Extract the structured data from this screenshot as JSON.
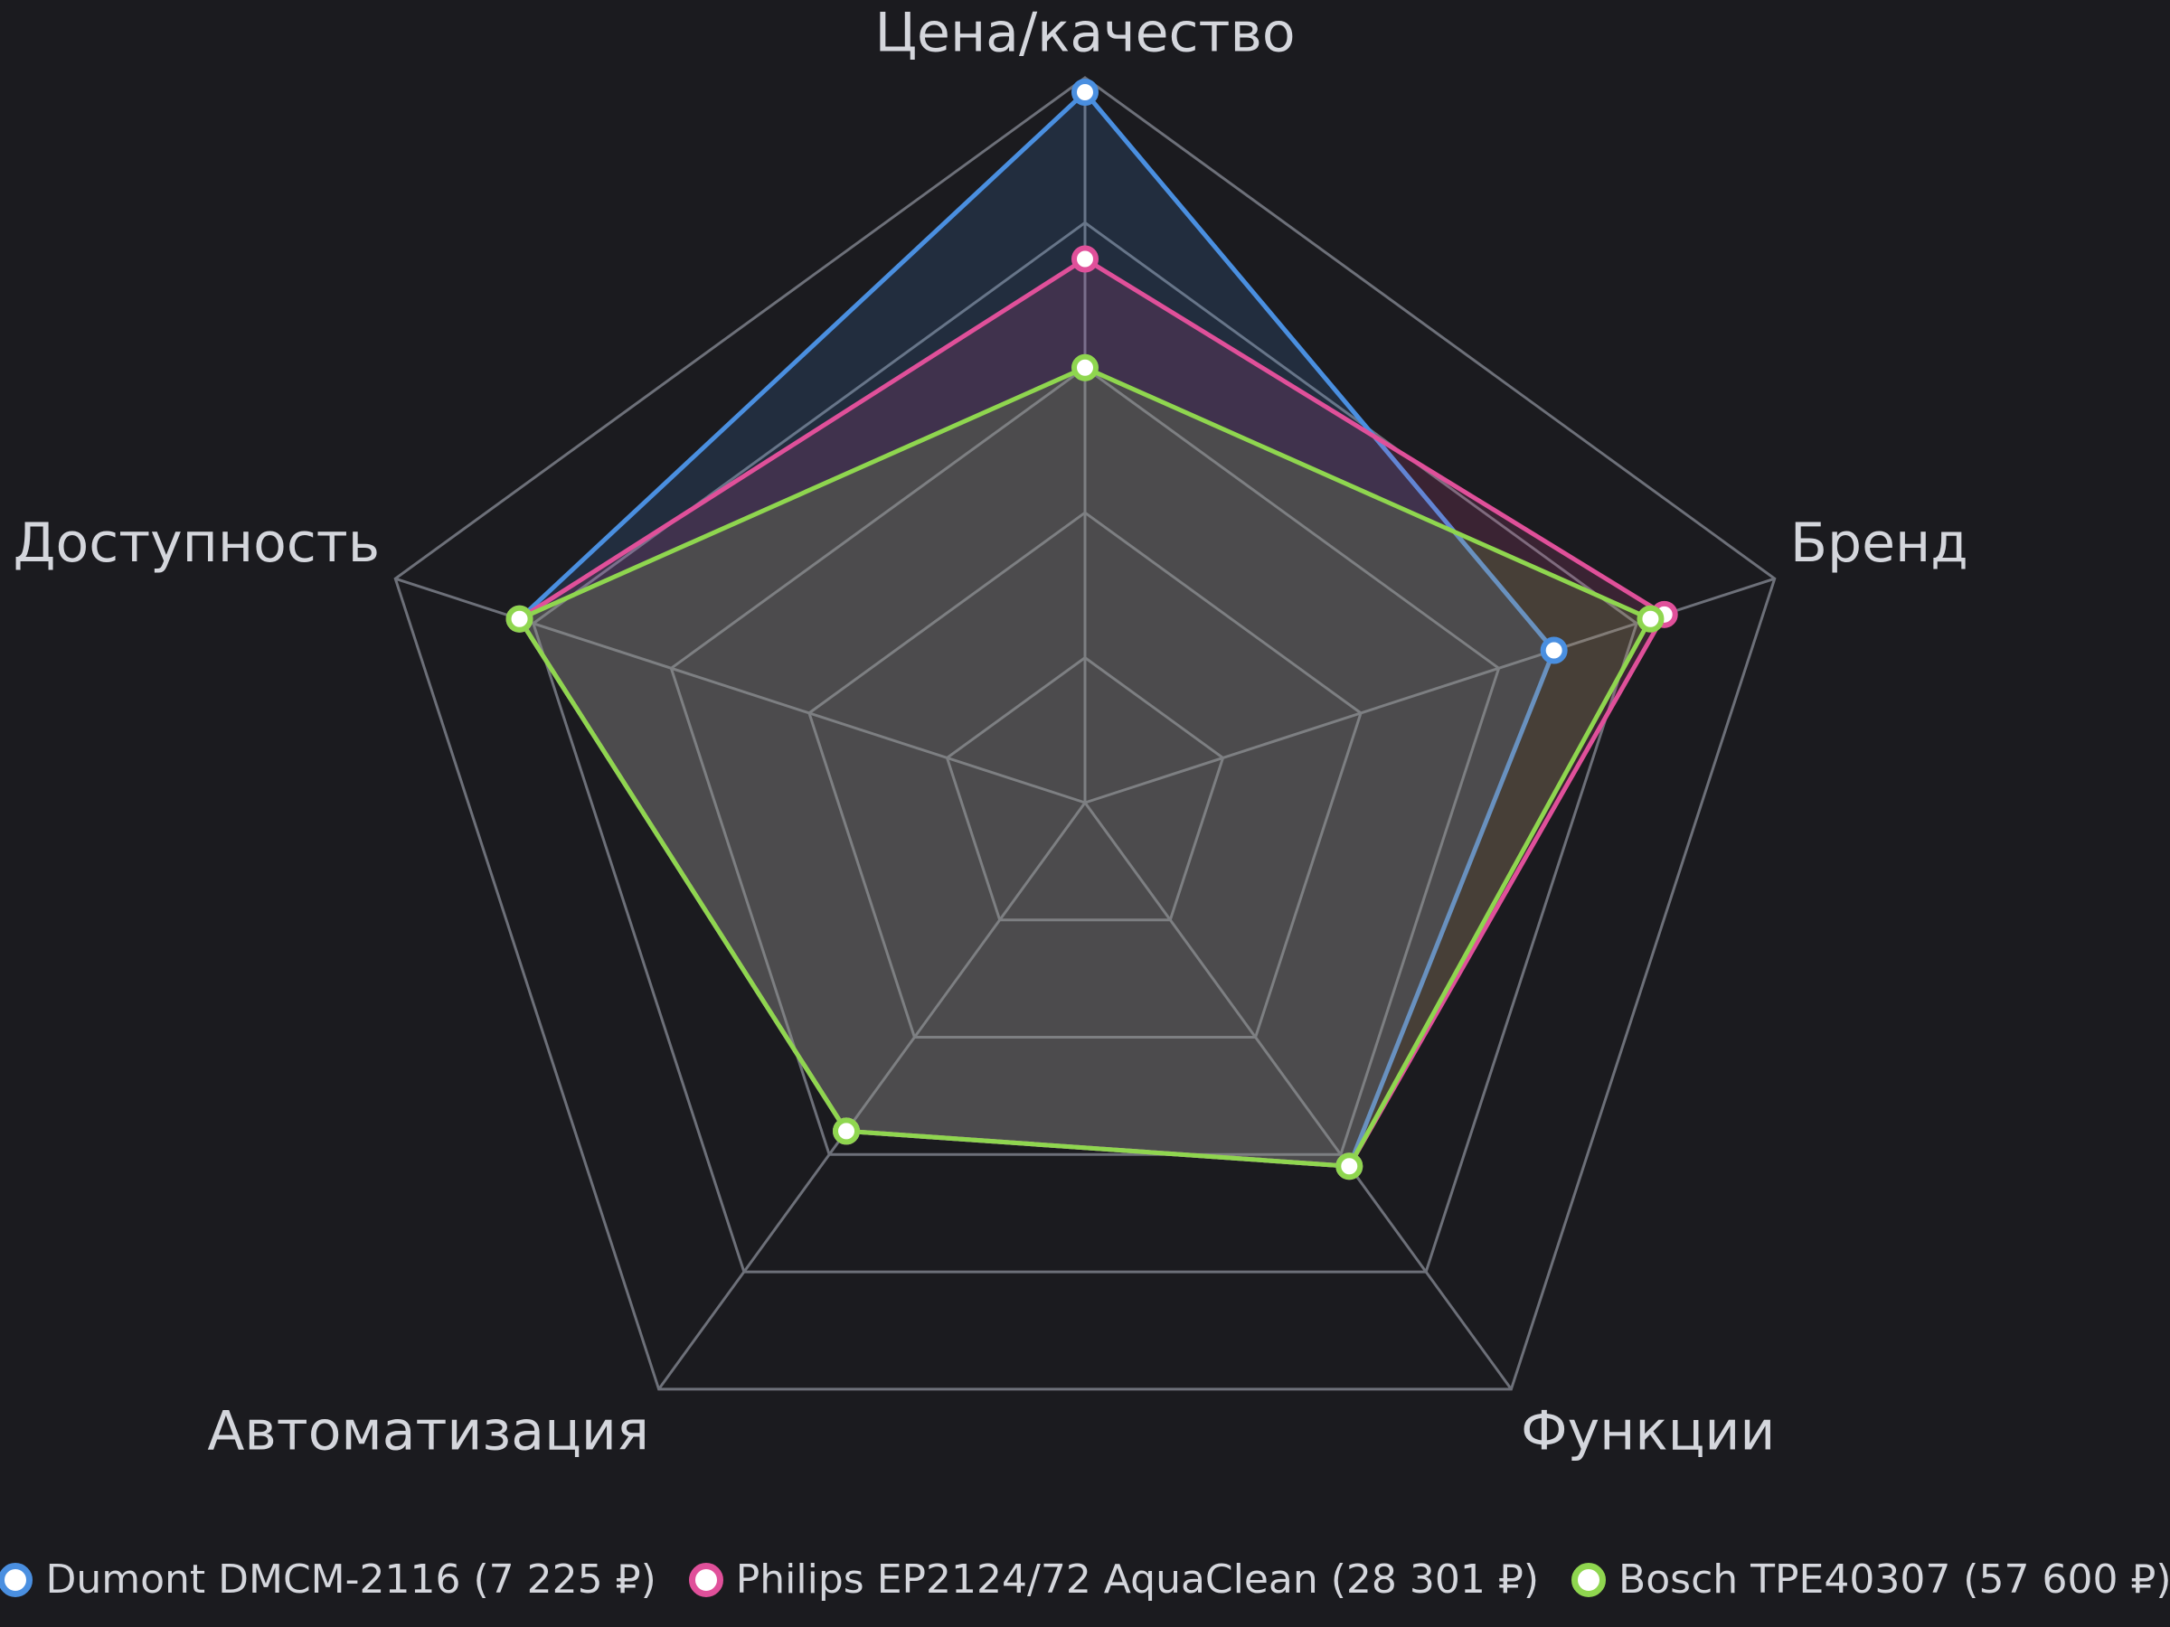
{
  "chart_data": {
    "type": "radar",
    "categories": [
      "Цена/качество",
      "Бренд",
      "Функции",
      "Автоматизация",
      "Доступность"
    ],
    "series": [
      {
        "name": "Dumont DMCM-2116 (7 225 ₽)",
        "color": "#4a8fe0",
        "values": [
          4.9,
          3.4,
          3.1,
          2.8,
          4.1
        ]
      },
      {
        "name": "Philips EP2124/72 AquaClean (28 301 ₽)",
        "color": "#e0509a",
        "values": [
          3.75,
          4.2,
          3.1,
          2.8,
          4.1
        ]
      },
      {
        "name": "Bosch TPE40307 (57 600 ₽)",
        "color": "#8fd64f",
        "values": [
          3.0,
          4.1,
          3.1,
          2.8,
          4.1
        ]
      }
    ],
    "rlim": [
      0,
      5
    ],
    "rticks": [
      1,
      2,
      3,
      4,
      5
    ],
    "grid": true,
    "legend": "bottom"
  }
}
